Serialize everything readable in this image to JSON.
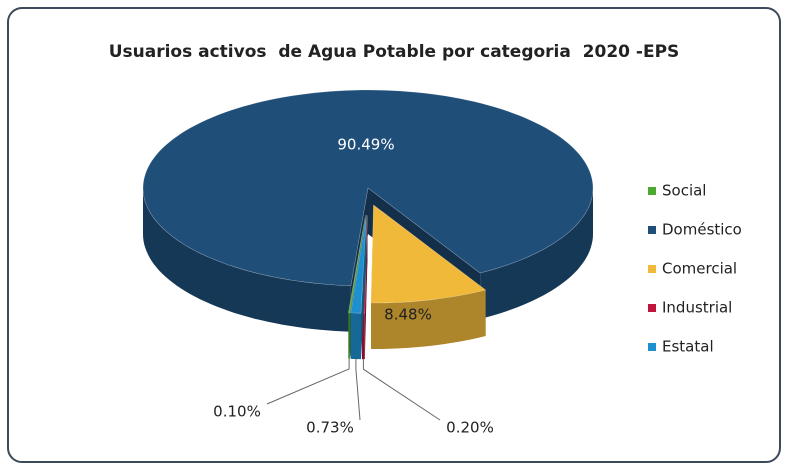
{
  "chart_data": {
    "type": "pie",
    "title": "Usuarios activos  de Agua Potable por categoria  2020 -EPS",
    "categories": [
      "Social",
      "Doméstico",
      "Comercial",
      "Industrial",
      "Estatal"
    ],
    "values": [
      0.1,
      90.49,
      8.48,
      0.2,
      0.73
    ],
    "value_labels": [
      "0.10%",
      "90.49%",
      "8.48%",
      "0.20%",
      "0.73%"
    ],
    "colors": [
      "#4ea72e",
      "#1f4e79",
      "#f0b93a",
      "#c0143c",
      "#1e90d0"
    ],
    "legend": "right"
  }
}
